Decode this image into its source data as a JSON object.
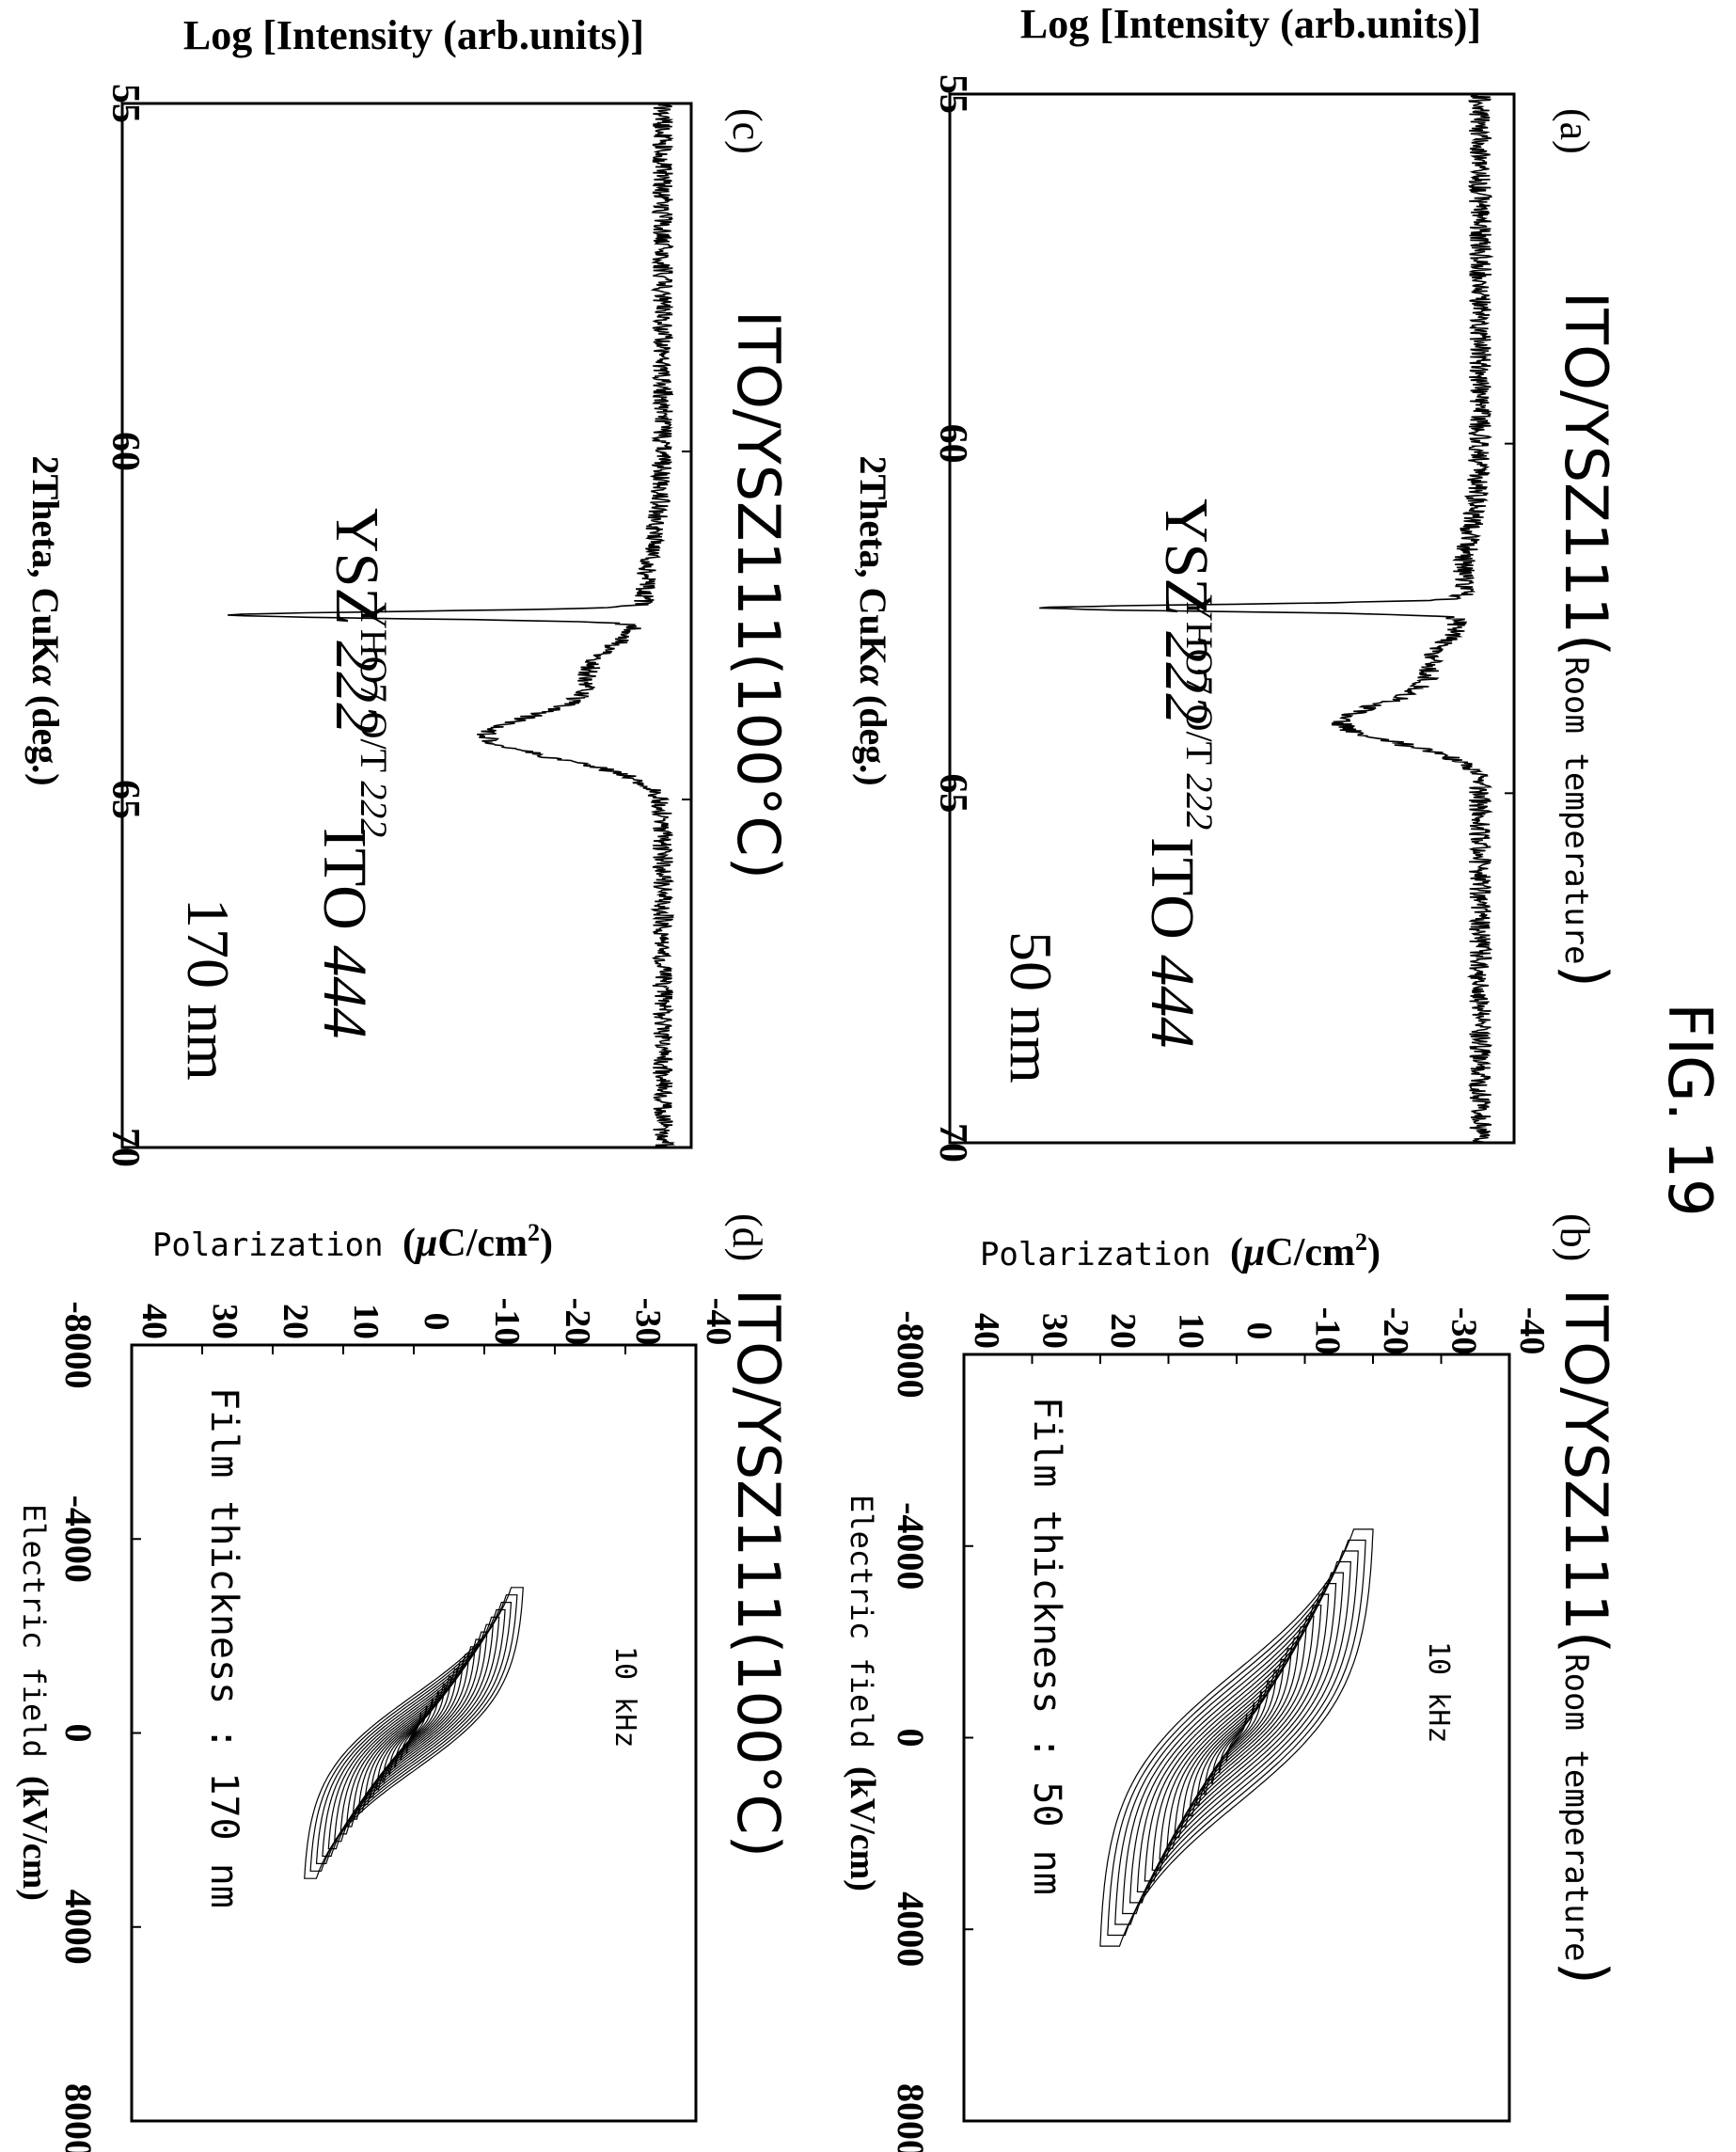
{
  "figure_label": "FIG. 19",
  "chart_data": [
    {
      "id": "a",
      "type": "line",
      "panel_label": "(a)",
      "title_main": "ITO/YSZ111",
      "title_paren_open": "(",
      "title_paren_text": "Room temperature",
      "title_paren_close": ")",
      "xlabel_main": "2Theta, CuK",
      "xlabel_symbol": "α",
      "xlabel_unit": " (deg.)",
      "ylabel": "Log [Intensity (arb.units)]",
      "xlim": [
        55,
        70
      ],
      "x_ticks": [
        "55",
        "60",
        "65",
        "70"
      ],
      "peaks": [
        {
          "x": 62.35,
          "height": 0.74,
          "width": 0.07
        },
        {
          "x": 63.2,
          "height": 0.08,
          "width": 0.5
        },
        {
          "x": 64.0,
          "height": 0.24,
          "width": 0.4
        }
      ],
      "baseline": 0.06,
      "noise": 0.02,
      "annotations": {
        "ysz_main": "YSZ ",
        "ysz_italic": "222",
        "yho_main": "YHO7 O/T ",
        "yho_italic": "222",
        "ito_main": "ITO ",
        "ito_italic": "444",
        "thickness": "50 nm"
      }
    },
    {
      "id": "b",
      "type": "line",
      "panel_label": "(b)",
      "title_main": "ITO/YSZ111",
      "title_paren_open": "(",
      "title_paren_text": "Room temperature",
      "title_paren_close": ")",
      "xlabel_main": "Electric field ",
      "xlabel_unit": "(kV/cm)",
      "ylabel_main": "Polarization ",
      "ylabel_unit_pre": "(",
      "ylabel_unit_mu": "μ",
      "ylabel_unit_rest": "C/cm",
      "ylabel_unit_sup": "2",
      "ylabel_unit_post": ")",
      "xlim": [
        -8000,
        8000
      ],
      "ylim": [
        -40,
        40
      ],
      "x_ticks": [
        "-8000",
        "-4000",
        "0",
        "4000",
        "8000"
      ],
      "y_ticks": [
        "-40",
        "-30",
        "-20",
        "-10",
        "0",
        "10",
        "20",
        "30",
        "40"
      ],
      "frequency": "10 kHz",
      "film_thickness": "Film thickness : 50 nm",
      "loops": {
        "count": 18,
        "e_min": 500,
        "e_max": 4350,
        "p_min": 1.5,
        "p_max": 20,
        "coercive_ratio": 0.45
      }
    },
    {
      "id": "c",
      "type": "line",
      "panel_label": "(c)",
      "title_main": "ITO/YSZ111",
      "title_paren_open": "(",
      "title_paren_text": "100°C",
      "title_paren_close": ")",
      "xlabel_main": "2Theta, CuK",
      "xlabel_symbol": "α",
      "xlabel_unit": " (deg.)",
      "ylabel": "Log [Intensity (arb.units)]",
      "xlim": [
        55,
        70
      ],
      "x_ticks": [
        "55",
        "60",
        "65",
        "70"
      ],
      "peaks": [
        {
          "x": 62.35,
          "height": 0.71,
          "width": 0.07
        },
        {
          "x": 63.2,
          "height": 0.12,
          "width": 0.55
        },
        {
          "x": 64.1,
          "height": 0.3,
          "width": 0.45
        }
      ],
      "baseline": 0.05,
      "noise": 0.018,
      "annotations": {
        "ysz_main": "YSZ ",
        "ysz_italic": "222",
        "yho_main": "YHO7 O/T ",
        "yho_italic": "222",
        "ito_main": "ITO ",
        "ito_italic": "444",
        "thickness": "170 nm"
      }
    },
    {
      "id": "d",
      "type": "line",
      "panel_label": "(d)",
      "title_main": "ITO/YSZ111",
      "title_paren_open": "(",
      "title_paren_text": "100°C",
      "title_paren_close": ")",
      "xlabel_main": "Electric field ",
      "xlabel_unit": "(kV/cm)",
      "ylabel_main": "Polarization ",
      "ylabel_unit_pre": "(",
      "ylabel_unit_mu": "μ",
      "ylabel_unit_rest": "C/cm",
      "ylabel_unit_sup": "2",
      "ylabel_unit_post": ")",
      "xlim": [
        -8000,
        8000
      ],
      "ylim": [
        -40,
        40
      ],
      "x_ticks": [
        "-8000",
        "-4000",
        "0",
        "4000",
        "8000"
      ],
      "y_ticks": [
        "-40",
        "-30",
        "-20",
        "-10",
        "0",
        "10",
        "20",
        "30",
        "40"
      ],
      "frequency": "10 kHz",
      "film_thickness": "Film thickness : 170 nm",
      "loops": {
        "count": 18,
        "e_min": 400,
        "e_max": 3000,
        "p_min": 1.0,
        "p_max": 15.5,
        "coercive_ratio": 0.35
      }
    }
  ]
}
